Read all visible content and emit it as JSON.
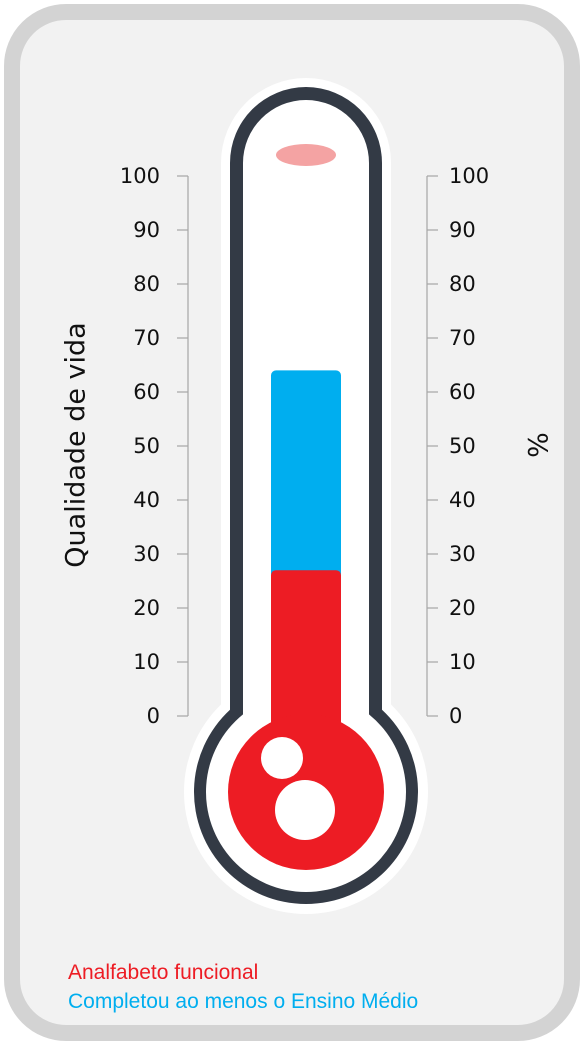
{
  "chart_data": {
    "type": "bar",
    "style": "thermometer",
    "ylabel_left": "Qualidade de vida",
    "ylabel_right": "%",
    "ylim": [
      0,
      100
    ],
    "yticks": [
      0,
      10,
      20,
      30,
      40,
      50,
      60,
      70,
      80,
      90,
      100
    ],
    "series": [
      {
        "name": "Completou ao menos o Ensino Médio",
        "value": 64,
        "color": "#00aeef"
      },
      {
        "name": "Analfabeto funcional",
        "value": 27,
        "color": "#ed1c24"
      }
    ]
  },
  "colors": {
    "panel_border": "#d3d3d3",
    "panel_fill": "#f2f2f2",
    "thermometer_outline": "#333a45",
    "tube_glass": "#ffffff",
    "highlight": "#f4a3a3",
    "axis_line": "#a6a6a6"
  }
}
